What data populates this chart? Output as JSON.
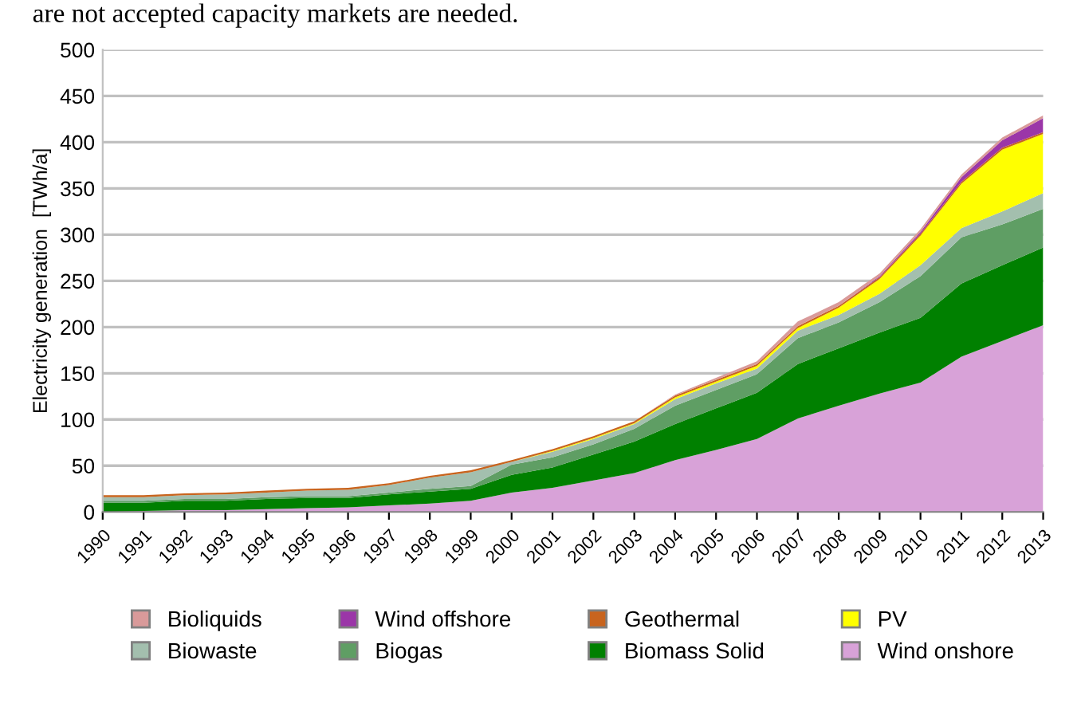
{
  "chart_data": {
    "type": "area",
    "stacked": true,
    "ylabel": "Electricity generation  [TWh/a]",
    "annotations": [
      "are not accepted capacity markets are needed."
    ],
    "categories": [
      "1990",
      "1991",
      "1992",
      "1993",
      "1994",
      "1995",
      "1996",
      "1997",
      "1998",
      "1999",
      "2000",
      "2001",
      "2002",
      "2003",
      "2004",
      "2005",
      "2006",
      "2007",
      "2008",
      "2009",
      "2010",
      "2011",
      "2012",
      "2013"
    ],
    "ylim": [
      0,
      500
    ],
    "yticks": [
      0,
      50,
      100,
      150,
      200,
      250,
      300,
      350,
      400,
      450,
      500
    ],
    "grid": "y",
    "legend": "bottom",
    "series": [
      {
        "name": "Wind onshore",
        "color": "#d8a2d8",
        "values": [
          0,
          1,
          2,
          2,
          3,
          4,
          5,
          7,
          9,
          12,
          21,
          26,
          34,
          42,
          56,
          67,
          79,
          101,
          115,
          128,
          140,
          168,
          185,
          202
        ]
      },
      {
        "name": "Biomass Solid",
        "color": "#008000",
        "values": [
          10,
          9,
          10,
          10,
          11,
          11,
          10,
          12,
          13,
          13,
          19,
          22,
          28,
          34,
          39,
          45,
          50,
          59,
          62,
          66,
          70,
          79,
          82,
          84
        ]
      },
      {
        "name": "Biogas",
        "color": "#5f9e64",
        "values": [
          2,
          2,
          2,
          2,
          2,
          2,
          2,
          2,
          3,
          3,
          11,
          11,
          11,
          14,
          20,
          20,
          20,
          28,
          28,
          33,
          45,
          50,
          44,
          42
        ]
      },
      {
        "name": "Biowaste",
        "color": "#a3bfae",
        "values": [
          4,
          4,
          4,
          5,
          5,
          6,
          7,
          8,
          12,
          15,
          3,
          6,
          6,
          5,
          7,
          7,
          6,
          8,
          8,
          9,
          12,
          10,
          14,
          17
        ]
      },
      {
        "name": "PV",
        "color": "#ffff00",
        "values": [
          0,
          0,
          0,
          0,
          0,
          0,
          0,
          0,
          0,
          0,
          0,
          1,
          1,
          1,
          2,
          2,
          3,
          3,
          8,
          16,
          32,
          48,
          67,
          64
        ]
      },
      {
        "name": "Geothermal",
        "color": "#c8641e",
        "values": [
          2,
          2,
          2,
          2,
          2,
          2,
          2,
          2,
          2,
          2,
          2,
          2,
          2,
          2,
          2,
          2,
          2,
          2,
          2,
          2,
          2,
          2,
          2,
          2
        ]
      },
      {
        "name": "Wind offshore",
        "color": "#9b36a8",
        "values": [
          0,
          0,
          0,
          0,
          0,
          0,
          0,
          0,
          0,
          0,
          0,
          0,
          0,
          0,
          0,
          0,
          0,
          0,
          0,
          1,
          2,
          5,
          8,
          15
        ]
      },
      {
        "name": "Bioliquids",
        "color": "#d99a9a",
        "values": [
          0,
          0,
          0,
          0,
          0,
          0,
          0,
          0,
          0,
          0,
          0,
          0,
          0,
          0,
          1,
          2,
          3,
          5,
          4,
          3,
          3,
          3,
          3,
          3
        ]
      }
    ]
  }
}
